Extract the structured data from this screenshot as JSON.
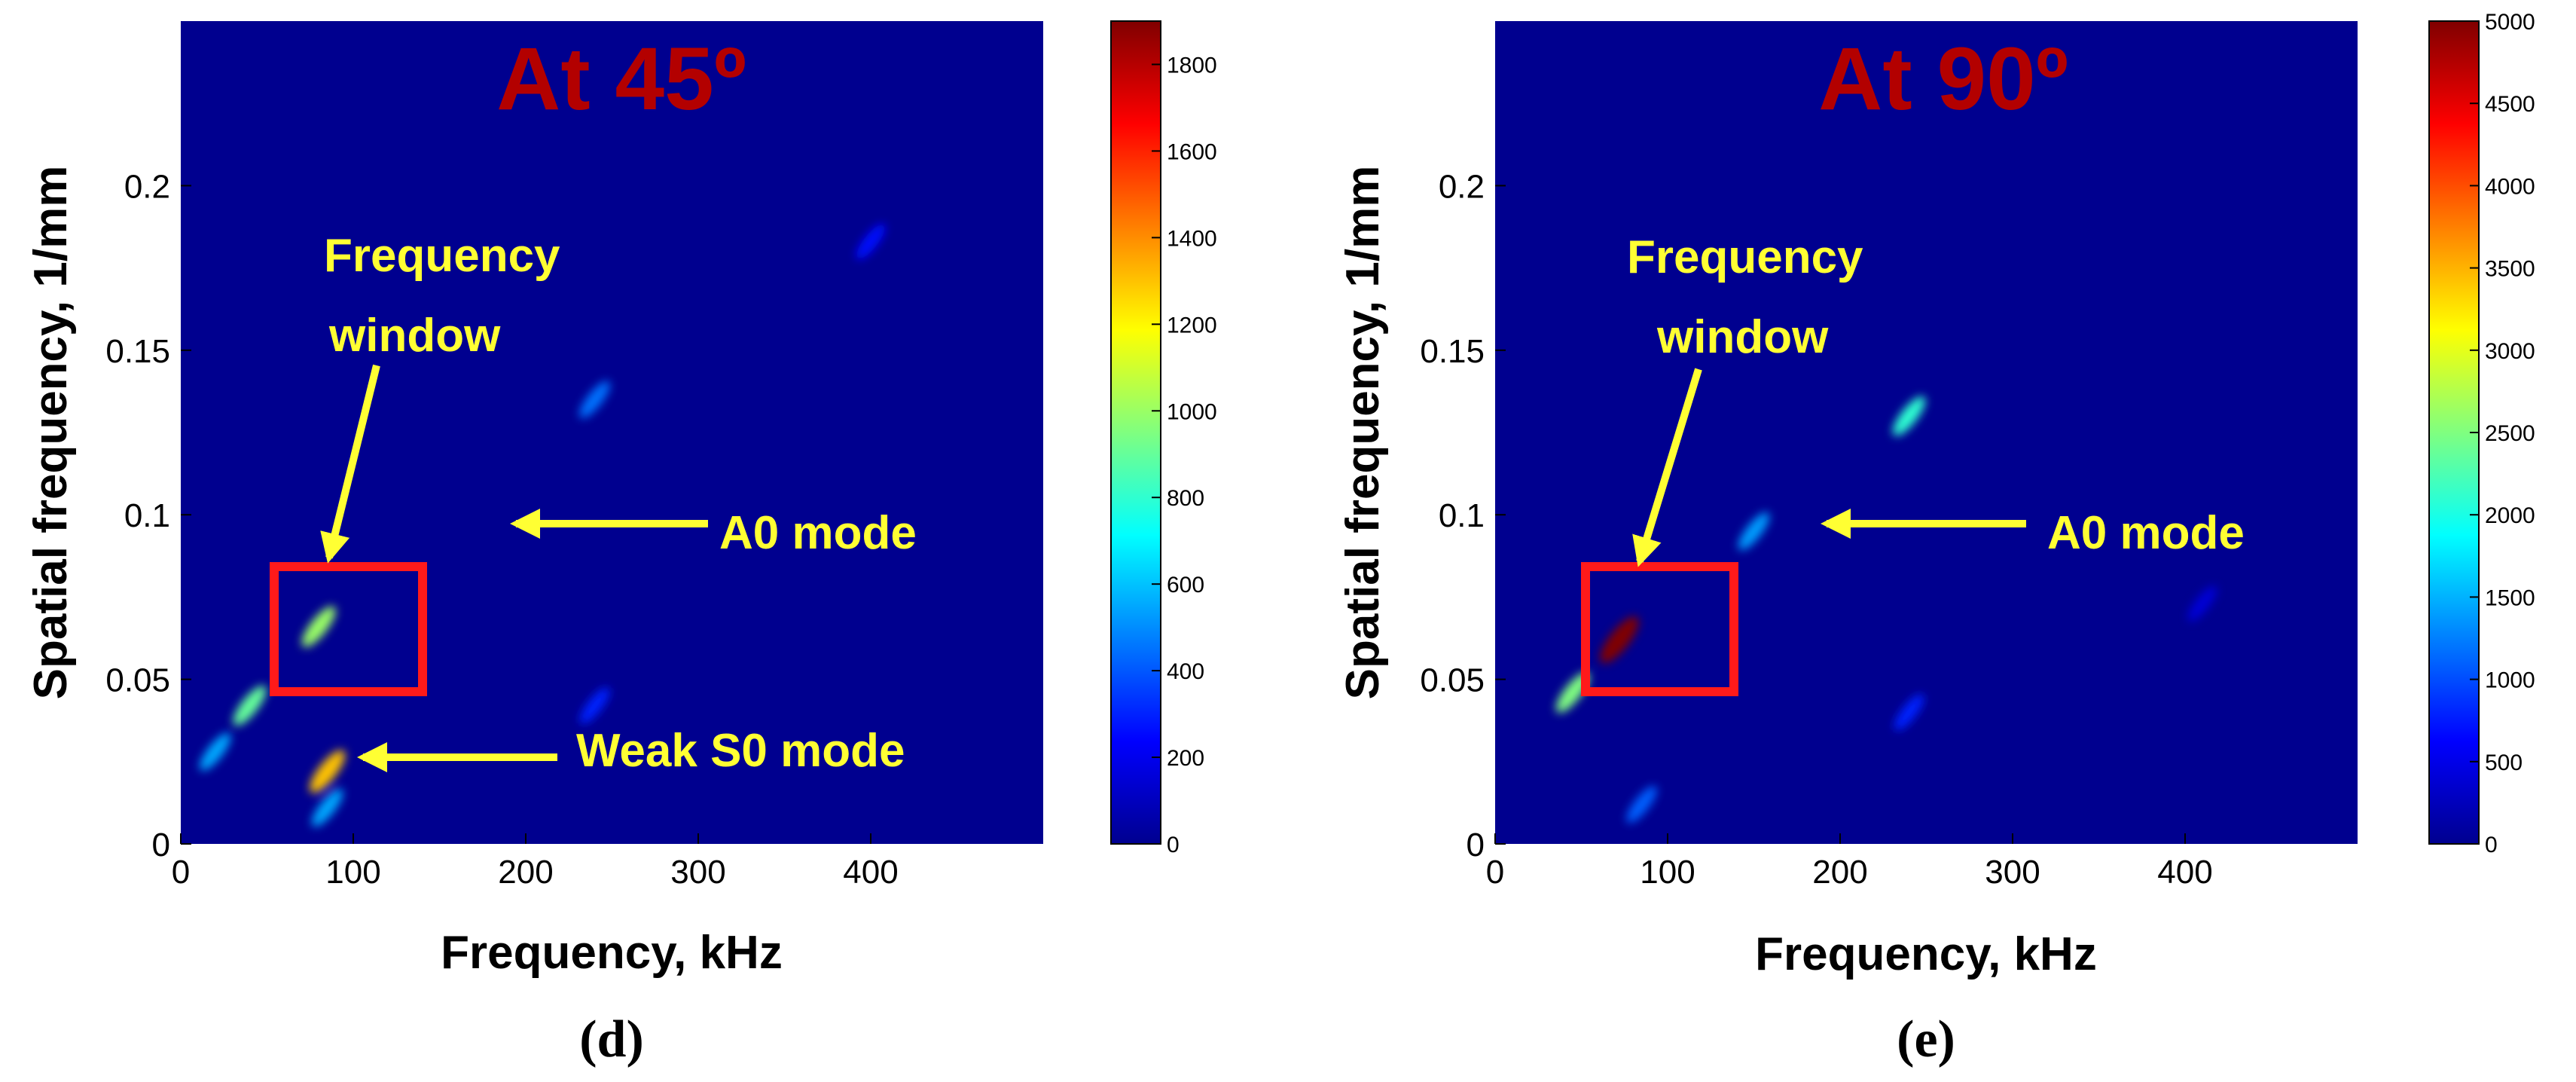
{
  "chart_data": [
    {
      "type": "heatmap",
      "panel_label": "(d)",
      "title": "At 45º",
      "xlabel": "Frequency, kHz",
      "ylabel": "Spatial frequency,  1/mm",
      "xlim": [
        0,
        500
      ],
      "ylim": [
        0,
        0.25
      ],
      "xticks": [
        "0",
        "100",
        "200",
        "300",
        "400"
      ],
      "yticks": [
        "0",
        "0.05",
        "0.1",
        "0.15",
        "0.2"
      ],
      "colorbar": {
        "min": 0,
        "max": 1900,
        "ticks": [
          "0",
          "200",
          "400",
          "600",
          "800",
          "1000",
          "1200",
          "1400",
          "1600",
          "1800"
        ]
      },
      "annotations": [
        {
          "text": "Frequency",
          "text2": "window",
          "arrow_to_freq": 80,
          "arrow_to_spatial": 0.084
        },
        {
          "text": "A0 mode",
          "arrow_to_freq": 180,
          "arrow_to_spatial": 0.099
        },
        {
          "text": "Weak S0 mode",
          "arrow_to_freq": 95,
          "arrow_to_spatial": 0.022
        }
      ],
      "window_box": {
        "freq": [
          50,
          132
        ],
        "spatial": [
          0.046,
          0.084
        ],
        "color": "#ff1a1a"
      },
      "features": [
        {
          "freq": 80,
          "spatial": 0.066,
          "level": 1000
        },
        {
          "freq": 40,
          "spatial": 0.042,
          "level": 900
        },
        {
          "freq": 20,
          "spatial": 0.028,
          "level": 550
        },
        {
          "freq": 85,
          "spatial": 0.022,
          "level": 1300
        },
        {
          "freq": 85,
          "spatial": 0.011,
          "level": 550
        },
        {
          "freq": 240,
          "spatial": 0.135,
          "level": 450
        },
        {
          "freq": 400,
          "spatial": 0.183,
          "level": 250
        },
        {
          "freq": 240,
          "spatial": 0.042,
          "level": 300
        }
      ]
    },
    {
      "type": "heatmap",
      "panel_label": "(e)",
      "title": "At 90º",
      "xlabel": "Frequency, kHz",
      "ylabel": "Spatial frequency,  1/mm",
      "xlim": [
        0,
        500
      ],
      "ylim": [
        0,
        0.25
      ],
      "xticks": [
        "0",
        "100",
        "200",
        "300",
        "400"
      ],
      "yticks": [
        "0",
        "0.05",
        "0.1",
        "0.15",
        "0.2"
      ],
      "colorbar": {
        "min": 0,
        "max": 5000,
        "ticks": [
          "0",
          "500",
          "1000",
          "1500",
          "2000",
          "2500",
          "3000",
          "3500",
          "4000",
          "4500",
          "5000"
        ]
      },
      "annotations": [
        {
          "text": "Frequency",
          "text2": "window",
          "arrow_to_freq": 80,
          "arrow_to_spatial": 0.082
        },
        {
          "text": "A0 mode",
          "arrow_to_freq": 178,
          "arrow_to_spatial": 0.099
        },
        {
          "text": "",
          "arrow_to_freq": null,
          "arrow_to_spatial": null
        }
      ],
      "window_box": {
        "freq": [
          50,
          132
        ],
        "spatial": [
          0.046,
          0.084
        ],
        "color": "#ff1a1a"
      },
      "features": [
        {
          "freq": 72,
          "spatial": 0.062,
          "level": 5000
        },
        {
          "freq": 45,
          "spatial": 0.046,
          "level": 2500
        },
        {
          "freq": 150,
          "spatial": 0.095,
          "level": 1400
        },
        {
          "freq": 240,
          "spatial": 0.13,
          "level": 2100
        },
        {
          "freq": 85,
          "spatial": 0.012,
          "level": 1100
        },
        {
          "freq": 240,
          "spatial": 0.04,
          "level": 800
        },
        {
          "freq": 410,
          "spatial": 0.073,
          "level": 400
        }
      ]
    }
  ]
}
